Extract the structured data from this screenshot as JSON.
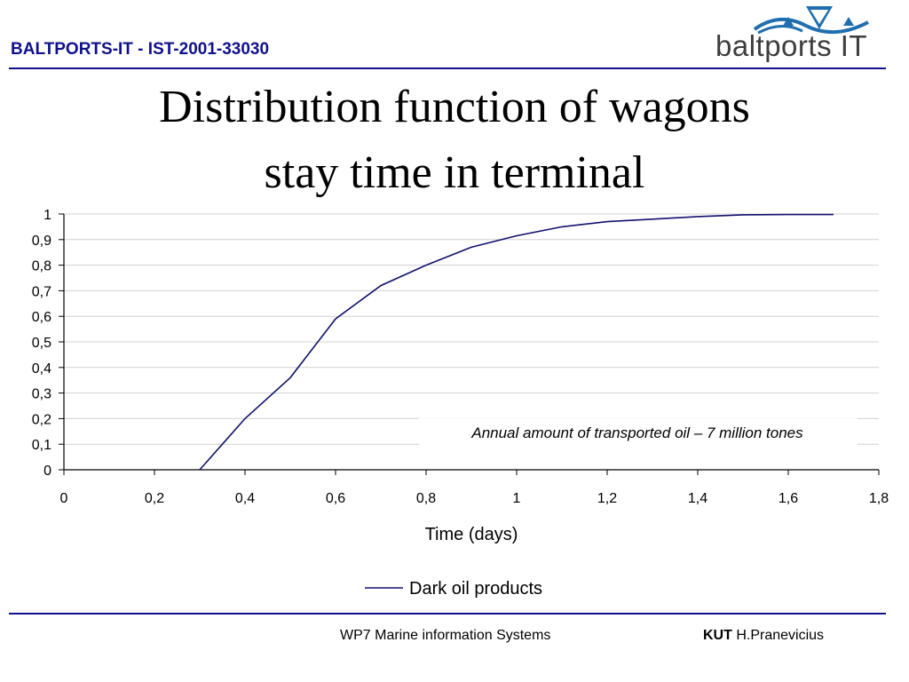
{
  "header": {
    "project": "BALTPORTS-IT - IST-2001-33030",
    "logo_text": "baltports IT"
  },
  "slide": {
    "title_line1": "Distribution function of wagons",
    "title_line2": "stay time in terminal"
  },
  "colors": {
    "accent": "#10108c",
    "series": "#10106e",
    "grid": "#d0d0d0"
  },
  "chart_data": {
    "type": "line",
    "xlabel": "Time (days)",
    "ylabel": "",
    "xlim": [
      0,
      1.8
    ],
    "ylim": [
      0,
      1
    ],
    "x_ticks": [
      "0",
      "0,2",
      "0,4",
      "0,6",
      "0,8",
      "1",
      "1,2",
      "1,4",
      "1,6",
      "1,8"
    ],
    "y_ticks": [
      "0",
      "0,1",
      "0,2",
      "0,3",
      "0,4",
      "0,5",
      "0,6",
      "0,7",
      "0,8",
      "0,9",
      "1"
    ],
    "grid": "horizontal",
    "legend_position": "bottom-center",
    "annotation": "Annual amount of transported oil – 7 million tones",
    "series": [
      {
        "name": "Dark oil products",
        "x": [
          0.3,
          0.4,
          0.5,
          0.6,
          0.7,
          0.8,
          0.9,
          1.0,
          1.1,
          1.2,
          1.3,
          1.4,
          1.5,
          1.6,
          1.7
        ],
        "y": [
          0,
          0.2,
          0.36,
          0.59,
          0.72,
          0.8,
          0.87,
          0.915,
          0.95,
          0.97,
          0.98,
          0.99,
          0.997,
          0.998,
          0.998
        ]
      }
    ]
  },
  "footer": {
    "wp": "WP7 Marine information Systems",
    "org": "KUT",
    "author": "H.Pranevicius"
  }
}
